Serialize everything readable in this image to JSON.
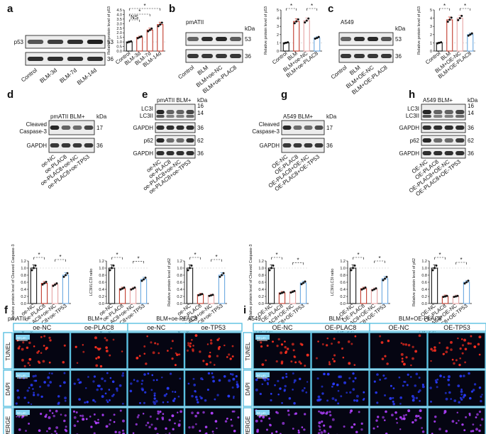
{
  "panel_letters": [
    "a",
    "b",
    "c",
    "d",
    "e",
    "g",
    "h",
    "f",
    "i"
  ],
  "colors": {
    "control": "#111111",
    "blm": "#c0392b",
    "oe_nc": "#e6a3a3",
    "oe_gene": "#6aa7e0",
    "micro_bg": "#050512",
    "tunel": "#ff3020",
    "dapi": "#2a3cff",
    "merge": "#b040ff",
    "frame": "#5ac0e0",
    "scalebar": "#7fd0ef"
  },
  "panel_a": {
    "blot_rows": [
      {
        "label": "p53",
        "kda": "53"
      },
      {
        "label": "",
        "kda": "36"
      }
    ],
    "lane_labels": [
      "Control",
      "BLM-3d",
      "BLM-7d",
      "BLM-14d"
    ],
    "kda_header": "kDa",
    "ylabel": "Relative protein level of p53",
    "yticks": [
      "0.0",
      "0.5",
      "1.0",
      "1.5",
      "2.0",
      "2.5",
      "3.0",
      "3.5",
      "4.0",
      "4.5"
    ],
    "categories": [
      "Control",
      "BLM-3d",
      "BLM-7d",
      "BLM-14d"
    ],
    "values": [
      1.0,
      1.5,
      2.3,
      2.9
    ],
    "sig": [
      "*",
      "*",
      "NS"
    ]
  },
  "panel_b": {
    "cell_line": "pmATII",
    "kda_header": "kDa",
    "blot_rows": [
      {
        "label": "",
        "kda": "53"
      },
      {
        "label": "",
        "kda": "36"
      }
    ],
    "lane_labels": [
      "Control",
      "BLM",
      "BLM+oe-NC",
      "BLM+oe-PLAC8"
    ],
    "ylabel": "Relative protein level of p53",
    "yticks": [
      "0",
      "1",
      "2",
      "3",
      "4",
      "5"
    ],
    "categories": [
      "Control",
      "BLM",
      "BLM+oe-NC",
      "BLM+oe-PLAC8"
    ],
    "values": [
      1.0,
      3.6,
      3.7,
      1.6
    ],
    "sig": [
      "*",
      "*"
    ]
  },
  "panel_c": {
    "cell_line": "A549",
    "kda_header": "kDa",
    "blot_rows": [
      {
        "label": "",
        "kda": "53"
      },
      {
        "label": "",
        "kda": "36"
      }
    ],
    "lane_labels": [
      "Control",
      "BLM",
      "BLM+OE-NC",
      "BLM+OE-PLAC8"
    ],
    "ylabel": "Relative protein level of p53",
    "yticks": [
      "0",
      "1",
      "2",
      "3",
      "4",
      "5"
    ],
    "categories": [
      "Control",
      "BLM",
      "BLM+OE-NC",
      "BLM+OE-PLAC8"
    ],
    "values": [
      1.0,
      3.8,
      4.0,
      2.0
    ],
    "sig": [
      "*",
      "*"
    ]
  },
  "panel_d": {
    "header": "pmATII BLM+",
    "kda_header": "kDa",
    "blot_rows": [
      {
        "label": "Cleaved Caspase-3",
        "kda": "17"
      },
      {
        "label": "GAPDH",
        "kda": "36"
      }
    ],
    "lane_labels": [
      "oe-NC",
      "oe-PLAC8",
      "oe-PLAC8+oe-NC",
      "oe-PLAC8+oe-TP53"
    ]
  },
  "panel_e": {
    "header": "pmATII BLM+",
    "kda_header": "kDa",
    "blot_rows": [
      {
        "label": "LC3I",
        "kda": "16"
      },
      {
        "label": "LC3II",
        "kda": "14"
      },
      {
        "label": "GAPDH",
        "kda": "36"
      },
      {
        "label": "p62",
        "kda": "62"
      },
      {
        "label": "GAPDH",
        "kda": "36"
      }
    ],
    "lane_labels": [
      "oe-NC",
      "oe-PLAC8",
      "oe-PLAC8+oe-NC",
      "oe-PLAC8+oe-TP53"
    ]
  },
  "panel_g": {
    "header": "A549 BLM+",
    "kda_header": "kDa",
    "blot_rows": [
      {
        "label": "Cleaved Caspase-3",
        "kda": "17"
      },
      {
        "label": "GAPDH",
        "kda": "36"
      }
    ],
    "lane_labels": [
      "OE-NC",
      "OE-PLAC8",
      "OE-PLAC8+OE-NC",
      "OE-PLAC8+OE-TP53"
    ]
  },
  "panel_h": {
    "header": "A549 BLM+",
    "kda_header": "kDa",
    "blot_rows": [
      {
        "label": "LC3I",
        "kda": "16"
      },
      {
        "label": "LC3II",
        "kda": "14"
      },
      {
        "label": "GAPDH",
        "kda": "36"
      },
      {
        "label": "p62",
        "kda": "62"
      },
      {
        "label": "GAPDH",
        "kda": "36"
      }
    ],
    "lane_labels": [
      "OE-NC",
      "OE-PLAC8",
      "OE-PLAC8+OE-NC",
      "OE-PLAC8+OE-TP53"
    ]
  },
  "chart_data": [
    {
      "type": "bar",
      "id": "a",
      "categories": [
        "Control",
        "BLM-3d",
        "BLM-7d",
        "BLM-14d"
      ],
      "values": [
        1.0,
        1.5,
        2.3,
        2.9
      ],
      "ylabel": "Relative protein level of p53",
      "ylim": [
        0,
        4.5
      ]
    },
    {
      "type": "bar",
      "id": "b",
      "categories": [
        "Control",
        "BLM",
        "BLM+oe-NC",
        "BLM+oe-PLAC8"
      ],
      "values": [
        1.0,
        3.6,
        3.7,
        1.6
      ],
      "ylabel": "Relative protein level of p53",
      "ylim": [
        0,
        5
      ]
    },
    {
      "type": "bar",
      "id": "c",
      "categories": [
        "Control",
        "BLM",
        "BLM+OE-NC",
        "BLM+OE-PLAC8"
      ],
      "values": [
        1.0,
        3.8,
        4.0,
        2.0
      ],
      "ylabel": "Relative protein level of p53",
      "ylim": [
        0,
        5
      ]
    },
    {
      "type": "bar",
      "id": "d-quant",
      "categories": [
        "oe-NC",
        "oe-PLAC8",
        "oe-PLAC8+oe-NC",
        "oe-PLAC8+oe-TP53"
      ],
      "values": [
        1.0,
        0.57,
        0.53,
        0.8
      ],
      "ylabel": "Relative protein level of Cleaved Caspase-3",
      "ylim": [
        0,
        1.2
      ]
    },
    {
      "type": "bar",
      "id": "e-lc3",
      "categories": [
        "oe-NC",
        "oe-PLAC8",
        "oe-PLAC8+oe-NC",
        "oe-PLAC8+oe-TP53"
      ],
      "values": [
        1.0,
        0.42,
        0.42,
        0.68
      ],
      "ylabel": "LC3II/LC3I ratio",
      "ylim": [
        0,
        1.2
      ]
    },
    {
      "type": "bar",
      "id": "e-p62",
      "categories": [
        "oe-NC",
        "oe-PLAC8",
        "oe-PLAC8+oe-NC",
        "oe-PLAC8+oe-TP53"
      ],
      "values": [
        1.0,
        0.25,
        0.23,
        0.8
      ],
      "ylabel": "Relative protein level of p62",
      "ylim": [
        0,
        1.2
      ]
    },
    {
      "type": "bar",
      "id": "g-quant",
      "categories": [
        "OE-NC",
        "OE-PLAC8",
        "OE-PLAC8+OE-NC",
        "OE-PLAC8+OE-TP53"
      ],
      "values": [
        1.0,
        0.3,
        0.33,
        0.58
      ],
      "ylabel": "Relative protein level of Cleaved Caspase-3",
      "ylim": [
        0,
        1.2
      ]
    },
    {
      "type": "bar",
      "id": "h-lc3",
      "categories": [
        "OE-NC",
        "OE-PLAC8",
        "OE-PLAC8+OE-NC",
        "OE-PLAC8+OE-TP53"
      ],
      "values": [
        1.0,
        0.42,
        0.4,
        0.7
      ],
      "ylabel": "LC3II/LC3I ratio",
      "ylim": [
        0,
        1.2
      ]
    },
    {
      "type": "bar",
      "id": "h-p62",
      "categories": [
        "OE-NC",
        "OE-PLAC8",
        "OE-PLAC8+OE-NC",
        "OE-PLAC8+OE-TP53"
      ],
      "values": [
        1.0,
        0.2,
        0.2,
        0.6
      ],
      "ylabel": "Relative protein level of p62",
      "ylim": [
        0,
        1.2
      ]
    }
  ],
  "bottom_bar_yticks": [
    "0.0",
    "0.2",
    "0.4",
    "0.6",
    "0.8",
    "1.0",
    "1.2"
  ],
  "sig_mark": "*",
  "panel_f": {
    "cell_line": "pmATII",
    "group1": "BLM+",
    "group2": "BLM+oe-PLAC8",
    "columns": [
      "oe-NC",
      "oe-PLAC8",
      "oe-NC",
      "oe-TP53"
    ],
    "rows": [
      "TUNEL",
      "DAPI",
      "MERGE"
    ],
    "scalebar": "50 μm"
  },
  "panel_i": {
    "cell_line": "A549",
    "group1": "BLM+",
    "group2": "BLM+OE-PLAC8",
    "columns": [
      "OE-NC",
      "OE-PLAC8",
      "OE-NC",
      "OE-TP53"
    ],
    "rows": [
      "TUNEL",
      "DAPI",
      "MERGE"
    ],
    "scalebar": "50 μm"
  }
}
